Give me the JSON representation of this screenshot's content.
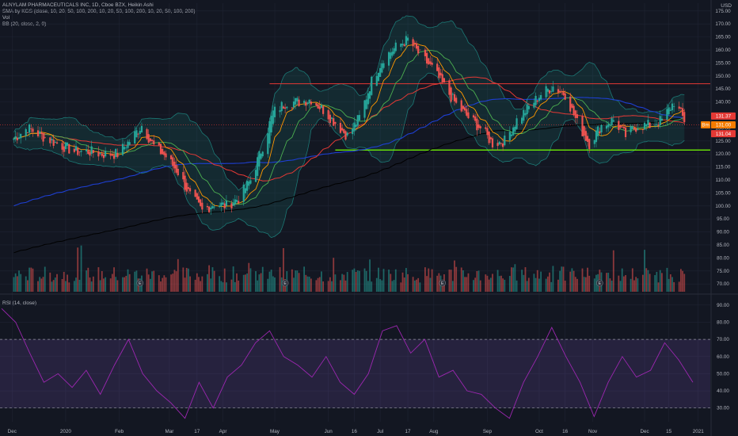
{
  "header": {
    "title": "ALNYLAM PHARMACEUTICALS INC, 1D, Cboe BZX, Heikin Ashi",
    "indicator_1": "SMA by KGS (close, 10, 20, 50, 100, 200, 10, 20, 50, 100, 200, 10, 20, 50, 100, 200)",
    "indicator_2": "Vol",
    "indicator_3": "BB (20, close, 2, 0)",
    "currency": "USD"
  },
  "rsi_panel": {
    "label": "RSI (14, close)"
  },
  "colors": {
    "background": "#131722",
    "grid": "#1f2433",
    "up": "#26a69a",
    "down": "#ef5350",
    "sma10": "#ff9800",
    "sma20": "#4caf50",
    "sma50": "#e53935",
    "sma100": "#1e3fd1",
    "sma200": "#000000",
    "bb": "#22b3a6",
    "resistance": "#e53935",
    "support": "#76ff03",
    "rsi_line": "#9c27b0",
    "rsi_band": "#7e57c2"
  },
  "price_badges": [
    {
      "label": "131.37",
      "color": "#e53935"
    },
    {
      "label": "131.00",
      "color": "#f57c00",
      "tag": "Bm"
    },
    {
      "label": "131.04",
      "color": "#e53935"
    }
  ],
  "earnings_marker": "E",
  "chart_data": [
    {
      "type": "candlestick-heikin-ashi",
      "title": "ALNYLAM PHARMACEUTICALS INC, 1D, Cboe BZX, Heikin Ashi",
      "y_ticks": [
        70,
        75,
        80,
        85,
        90,
        95,
        100,
        105,
        110,
        115,
        120,
        125,
        130,
        135,
        140,
        145,
        150,
        155,
        160,
        165,
        170,
        175
      ],
      "ylim": [
        67,
        178
      ],
      "x_tick_labels": [
        "Dec",
        "2020",
        "Feb",
        "Mar",
        "17",
        "Apr",
        "May",
        "Jun",
        "16",
        "Jul",
        "17",
        "Aug",
        "Sep",
        "Oct",
        "16",
        "Nov",
        "Dec",
        "15",
        "2021"
      ],
      "close_path": [
        [
          "2019-12-02",
          126
        ],
        [
          "2019-12-10",
          130
        ],
        [
          "2019-12-18",
          127
        ],
        [
          "2019-12-27",
          124
        ],
        [
          "2020-01-06",
          121
        ],
        [
          "2020-01-14",
          121
        ],
        [
          "2020-01-22",
          120
        ],
        [
          "2020-01-31",
          120
        ],
        [
          "2020-02-07",
          125
        ],
        [
          "2020-02-14",
          131
        ],
        [
          "2020-02-21",
          123
        ],
        [
          "2020-02-28",
          119
        ],
        [
          "2020-03-06",
          113
        ],
        [
          "2020-03-13",
          104
        ],
        [
          "2020-03-20",
          98
        ],
        [
          "2020-03-27",
          101
        ],
        [
          "2020-04-03",
          100
        ],
        [
          "2020-04-10",
          103
        ],
        [
          "2020-04-17",
          110
        ],
        [
          "2020-04-24",
          123
        ],
        [
          "2020-04-30",
          136
        ],
        [
          "2020-05-08",
          140
        ],
        [
          "2020-05-15",
          140
        ],
        [
          "2020-05-22",
          141
        ],
        [
          "2020-05-29",
          137
        ],
        [
          "2020-06-05",
          132
        ],
        [
          "2020-06-12",
          127
        ],
        [
          "2020-06-19",
          134
        ],
        [
          "2020-06-26",
          148
        ],
        [
          "2020-07-03",
          157
        ],
        [
          "2020-07-10",
          161
        ],
        [
          "2020-07-17",
          164
        ],
        [
          "2020-07-24",
          158
        ],
        [
          "2020-07-31",
          153
        ],
        [
          "2020-08-07",
          146
        ],
        [
          "2020-08-14",
          139
        ],
        [
          "2020-08-21",
          134
        ],
        [
          "2020-08-28",
          130
        ],
        [
          "2020-09-04",
          124
        ],
        [
          "2020-09-11",
          125
        ],
        [
          "2020-09-18",
          133
        ],
        [
          "2020-09-25",
          138
        ],
        [
          "2020-10-02",
          143
        ],
        [
          "2020-10-09",
          146
        ],
        [
          "2020-10-16",
          143
        ],
        [
          "2020-10-23",
          132
        ],
        [
          "2020-10-30",
          124
        ],
        [
          "2020-11-06",
          131
        ],
        [
          "2020-11-13",
          133
        ],
        [
          "2020-11-20",
          127
        ],
        [
          "2020-11-27",
          131
        ],
        [
          "2020-12-04",
          131
        ],
        [
          "2020-12-11",
          133
        ],
        [
          "2020-12-18",
          140
        ],
        [
          "2020-12-24",
          133
        ]
      ],
      "horizontal_levels": {
        "resistance": 147,
        "support": 121.5
      },
      "volume_markers_earnings": [
        "2020-02",
        "2020-05",
        "2020-08",
        "2020-11"
      ]
    },
    {
      "type": "line",
      "title": "RSI (14, close)",
      "y_ticks": [
        30,
        40,
        50,
        60,
        70,
        80,
        90
      ],
      "ylim": [
        22,
        95
      ],
      "bands": [
        30,
        70
      ],
      "values": [
        88,
        80,
        62,
        45,
        50,
        42,
        52,
        38,
        55,
        70,
        50,
        40,
        33,
        24,
        45,
        30,
        48,
        55,
        68,
        75,
        60,
        55,
        48,
        60,
        45,
        38,
        50,
        75,
        78,
        62,
        70,
        48,
        52,
        40,
        38,
        30,
        24,
        45,
        60,
        77,
        60,
        45,
        25,
        45,
        60,
        48,
        52,
        68,
        58,
        45
      ]
    }
  ]
}
